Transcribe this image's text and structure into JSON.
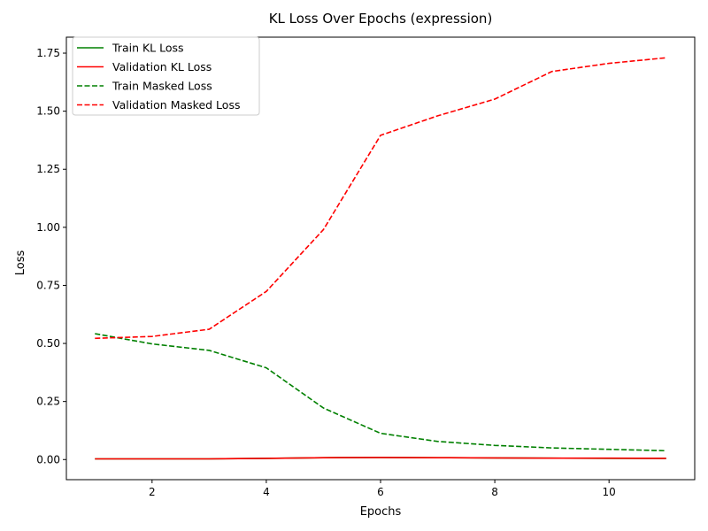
{
  "chart_data": {
    "type": "line",
    "title": "KL Loss Over Epochs (expression)",
    "xlabel": "Epochs",
    "ylabel": "Loss",
    "xlim": [
      0.5,
      11.5
    ],
    "ylim": [
      -0.0866,
      1.8187
    ],
    "xticks": [
      2,
      4,
      6,
      8,
      10
    ],
    "xtick_labels": [
      "2",
      "4",
      "6",
      "8",
      "10"
    ],
    "yticks": [
      0.0,
      0.25,
      0.5,
      0.75,
      1.0,
      1.25,
      1.5,
      1.75
    ],
    "ytick_labels": [
      "0.00",
      "0.25",
      "0.50",
      "0.75",
      "1.00",
      "1.25",
      "1.50",
      "1.75"
    ],
    "grid": false,
    "legend_position": "top-left",
    "x": [
      1,
      2,
      3,
      4,
      5,
      6,
      7,
      8,
      9,
      10,
      11
    ],
    "series": [
      {
        "name": "Train KL Loss",
        "color": "#008000",
        "dash": "solid",
        "values": [
          0.003,
          0.003,
          0.003,
          0.005,
          0.008,
          0.009,
          0.008,
          0.007,
          0.006,
          0.005,
          0.005
        ]
      },
      {
        "name": "Validation KL Loss",
        "color": "#ff0000",
        "dash": "solid",
        "values": [
          0.003,
          0.003,
          0.003,
          0.005,
          0.008,
          0.009,
          0.008,
          0.007,
          0.006,
          0.006,
          0.005
        ]
      },
      {
        "name": "Train Masked Loss",
        "color": "#008000",
        "dash": "dashed",
        "values": [
          0.542,
          0.498,
          0.47,
          0.395,
          0.222,
          0.113,
          0.078,
          0.061,
          0.05,
          0.044,
          0.038
        ]
      },
      {
        "name": "Validation Masked Loss",
        "color": "#ff0000",
        "dash": "dashed",
        "values": [
          0.522,
          0.53,
          0.561,
          0.724,
          0.99,
          1.396,
          1.48,
          1.552,
          1.671,
          1.706,
          1.73
        ]
      }
    ]
  }
}
